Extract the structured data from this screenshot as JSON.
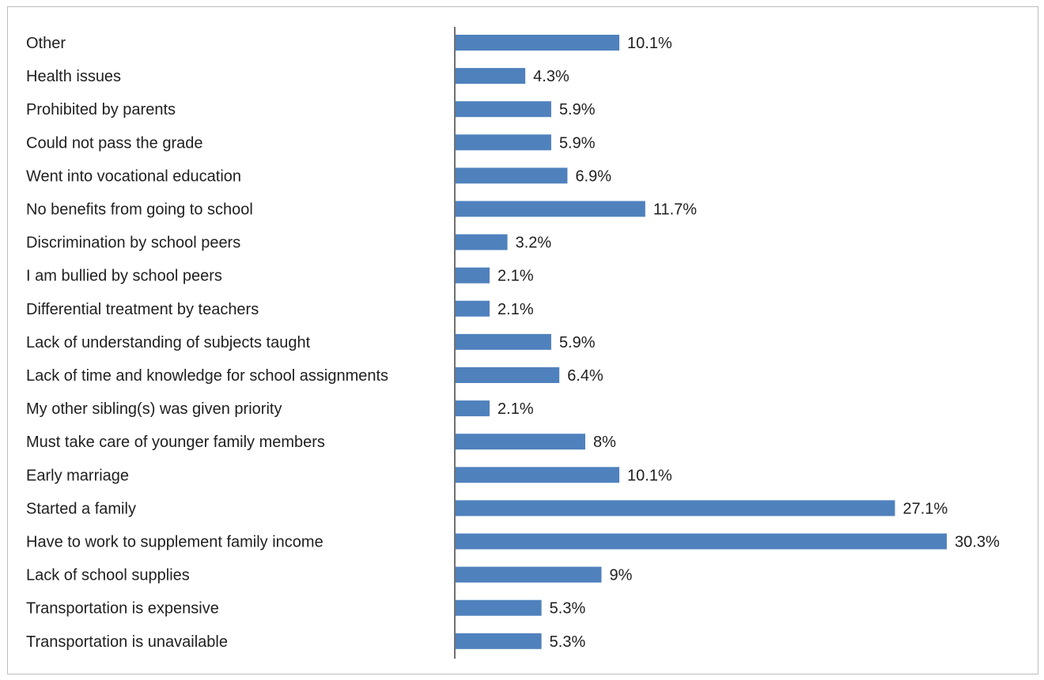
{
  "chart_data": {
    "type": "bar",
    "orientation": "horizontal",
    "categories": [
      "Other",
      "Health issues",
      "Prohibited by parents",
      "Could not pass the grade",
      "Went into vocational education",
      "No benefits from going to school",
      "Discrimination by school peers",
      "I am bullied by school peers",
      "Differential treatment by teachers",
      "Lack of understanding of subjects taught",
      "Lack of time and knowledge for school assignments",
      "My other sibling(s) was given priority",
      "Must take care of younger family members",
      "Early marriage",
      "Started a family",
      "Have to work to supplement family income",
      "Lack of school supplies",
      "Transportation is expensive",
      "Transportation is unavailable"
    ],
    "values": [
      10.1,
      4.3,
      5.9,
      5.9,
      6.9,
      11.7,
      3.2,
      2.1,
      2.1,
      5.9,
      6.4,
      2.1,
      8,
      10.1,
      27.1,
      30.3,
      9,
      5.3,
      5.3
    ],
    "value_labels": [
      "10.1%",
      "4.3%",
      "5.9%",
      "5.9%",
      "6.9%",
      "11.7%",
      "3.2%",
      "2.1%",
      "2.1%",
      "5.9%",
      "6.4%",
      "2.1%",
      "8%",
      "10.1%",
      "27.1%",
      "30.3%",
      "9%",
      "5.3%",
      "5.3%"
    ],
    "xlim": [
      0,
      35
    ],
    "title": "",
    "xlabel": "",
    "ylabel": "",
    "grid": false,
    "legend": "none",
    "bar_color": "#4f81bd",
    "axis_color": "#404040"
  }
}
